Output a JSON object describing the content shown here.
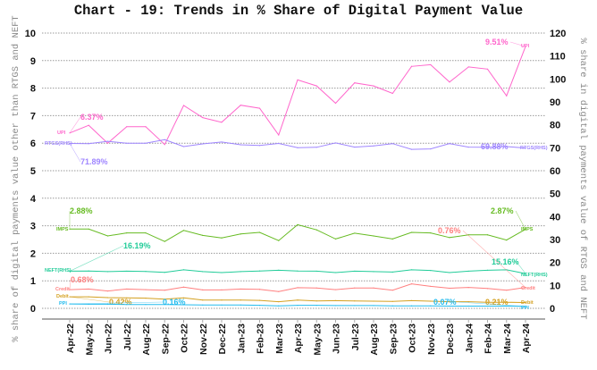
{
  "chart_data": {
    "type": "line",
    "title": "Chart - 19: Trends in % Share of Digital Payment Value",
    "ylabel": "% share of digital payments value other than RTGS and NEFT",
    "ylabel_right": "% share in digital payments value of RTGS and NEFT",
    "ylim": [
      0,
      10
    ],
    "ylim_right": [
      0,
      120
    ],
    "yticks": [
      "0",
      "1",
      "2",
      "3",
      "4",
      "5",
      "6",
      "7",
      "8",
      "9",
      "10"
    ],
    "yticks_right": [
      "0",
      "10",
      "20",
      "30",
      "40",
      "50",
      "60",
      "70",
      "80",
      "90",
      "100",
      "110",
      "120"
    ],
    "grid": true,
    "categories": [
      "Apr-22",
      "May-22",
      "Jun-22",
      "Jul-22",
      "Aug-22",
      "Sep-22",
      "Oct-22",
      "Nov-22",
      "Dec-22",
      "Jan-23",
      "Feb-23",
      "Mar-23",
      "Apr-23",
      "May-23",
      "Jun-23",
      "Jul-23",
      "Aug-23",
      "Sep-23",
      "Oct-23",
      "Nov-23",
      "Dec-23",
      "Jan-24",
      "Feb-24",
      "Mar-24",
      "Apr-24"
    ],
    "series": [
      {
        "name": "UPI",
        "axis": "left",
        "color": "#ff66cc",
        "start_label": "6.37%",
        "end_label": "9.51%",
        "values": [
          6.37,
          6.65,
          6.0,
          6.6,
          6.6,
          5.95,
          7.37,
          6.93,
          6.76,
          7.38,
          7.27,
          6.3,
          8.3,
          8.08,
          7.45,
          8.19,
          8.08,
          7.81,
          8.79,
          8.85,
          8.22,
          8.77,
          8.69,
          7.72,
          9.51
        ]
      },
      {
        "name": "RTGS(RHS)",
        "axis": "right",
        "color": "#9f86ff",
        "start_label": "71.89%",
        "end_label": "69.88%",
        "values": [
          71.89,
          71.8,
          72.8,
          72.0,
          72.0,
          73.5,
          70.5,
          71.7,
          72.5,
          71.3,
          71.0,
          71.9,
          70.0,
          70.2,
          72.1,
          70.3,
          70.8,
          71.8,
          69.3,
          69.5,
          71.8,
          70.3,
          70.2,
          70.5,
          69.88
        ]
      },
      {
        "name": "IMPS",
        "axis": "left",
        "color": "#66bb22",
        "start_label": "2.88%",
        "end_label": "2.87%",
        "values": [
          2.88,
          2.88,
          2.63,
          2.74,
          2.74,
          2.43,
          2.83,
          2.65,
          2.56,
          2.7,
          2.76,
          2.46,
          3.04,
          2.85,
          2.52,
          2.73,
          2.63,
          2.52,
          2.76,
          2.74,
          2.57,
          2.67,
          2.67,
          2.48,
          2.87
        ]
      },
      {
        "name": "NEFT(RHS)",
        "axis": "right",
        "color": "#22cc99",
        "start_label": "16.19%",
        "end_label": "15.16%",
        "values": [
          16.19,
          16.3,
          16.0,
          16.2,
          16.1,
          15.7,
          16.8,
          16.0,
          15.6,
          16.0,
          16.3,
          16.6,
          16.3,
          16.2,
          15.6,
          16.2,
          16.0,
          15.8,
          16.8,
          16.5,
          15.6,
          16.2,
          16.6,
          16.8,
          15.16
        ]
      },
      {
        "name": "Credit",
        "axis": "left",
        "color": "#ff7f7f",
        "start_label": "0.68%",
        "end_label": "0.76%",
        "values": [
          0.68,
          0.7,
          0.63,
          0.7,
          0.68,
          0.66,
          0.77,
          0.67,
          0.67,
          0.7,
          0.69,
          0.61,
          0.75,
          0.74,
          0.68,
          0.74,
          0.74,
          0.66,
          0.89,
          0.8,
          0.73,
          0.76,
          0.72,
          0.66,
          0.76
        ]
      },
      {
        "name": "Debit",
        "axis": "left",
        "color": "#d4a020",
        "start_label": "0.42%",
        "end_label": "0.21%",
        "values": [
          0.42,
          0.42,
          0.39,
          0.38,
          0.37,
          0.33,
          0.38,
          0.3,
          0.3,
          0.3,
          0.29,
          0.24,
          0.3,
          0.27,
          0.28,
          0.27,
          0.26,
          0.25,
          0.28,
          0.26,
          0.24,
          0.24,
          0.22,
          0.22,
          0.21
        ]
      },
      {
        "name": "PPI",
        "axis": "left",
        "color": "#22bbee",
        "start_label": "0.16%",
        "end_label": "0.07%",
        "values": [
          0.16,
          0.15,
          0.15,
          0.14,
          0.14,
          0.14,
          0.13,
          0.12,
          0.12,
          0.12,
          0.11,
          0.09,
          0.11,
          0.11,
          0.1,
          0.1,
          0.1,
          0.09,
          0.09,
          0.09,
          0.08,
          0.08,
          0.08,
          0.08,
          0.07
        ]
      }
    ]
  }
}
